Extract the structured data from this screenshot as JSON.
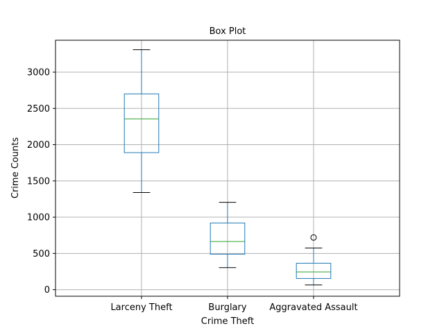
{
  "chart_data": {
    "type": "box",
    "title": "Box Plot",
    "xlabel": "Crime Theft",
    "ylabel": "Crime Counts",
    "ylim": [
      -90,
      3440
    ],
    "yticks": [
      0,
      500,
      1000,
      1500,
      2000,
      2500,
      3000
    ],
    "grid": true,
    "legend": "none",
    "colors": {
      "box": "#1f77b4",
      "median": "#2ca02c",
      "cap": "#000000",
      "grid": "#b0b0b0"
    },
    "categories": [
      "Larceny Theft",
      "Burglary",
      "Aggravated Assault"
    ],
    "boxes": [
      {
        "category": "Larceny Theft",
        "whisker_low": 1340,
        "q1": 1890,
        "median": 2355,
        "q3": 2700,
        "whisker_high": 3310,
        "outliers": []
      },
      {
        "category": "Burglary",
        "whisker_low": 305,
        "q1": 490,
        "median": 665,
        "q3": 920,
        "whisker_high": 1205,
        "outliers": []
      },
      {
        "category": "Aggravated Assault",
        "whisker_low": 65,
        "q1": 155,
        "median": 245,
        "q3": 365,
        "whisker_high": 575,
        "outliers": [
          720
        ]
      }
    ]
  }
}
